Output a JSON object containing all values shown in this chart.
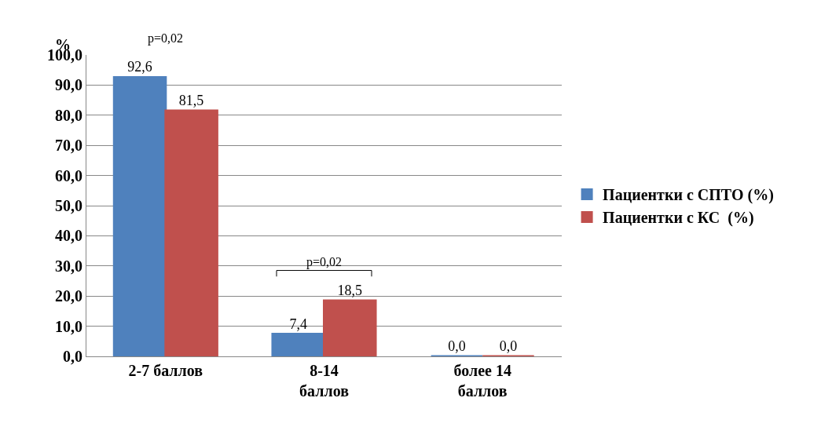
{
  "chart_data": {
    "type": "bar",
    "ylabel": "%",
    "categories": [
      "2-7 баллов",
      "8-14\nбаллов",
      "более 14\nбаллов"
    ],
    "series": [
      {
        "name": "Пациентки с СПТО (%)",
        "color": "#4f81bd",
        "values": [
          92.6,
          7.4,
          0.0
        ],
        "value_labels": [
          "92,6",
          "7,4",
          "0,0"
        ]
      },
      {
        "name": "Пациентки с КС  (%)",
        "color": "#c0504d",
        "values": [
          81.5,
          18.5,
          0.0
        ],
        "value_labels": [
          "81,5",
          "18,5",
          "0,0"
        ]
      }
    ],
    "ylim": [
      0,
      100
    ],
    "yticks": [
      {
        "value": 0,
        "label": "0,0"
      },
      {
        "value": 10,
        "label": "10,0"
      },
      {
        "value": 20,
        "label": "20,0"
      },
      {
        "value": 30,
        "label": "30,0"
      },
      {
        "value": 40,
        "label": "40,0"
      },
      {
        "value": 50,
        "label": "50,0"
      },
      {
        "value": 60,
        "label": "60,0"
      },
      {
        "value": 70,
        "label": "70,0"
      },
      {
        "value": 80,
        "label": "80,0"
      },
      {
        "value": 90,
        "label": "90,0"
      },
      {
        "value": 100,
        "label": "100,0"
      }
    ],
    "annotations": [
      "p=0,02",
      "p=0,02"
    ],
    "grid": "y",
    "legend": "right"
  }
}
